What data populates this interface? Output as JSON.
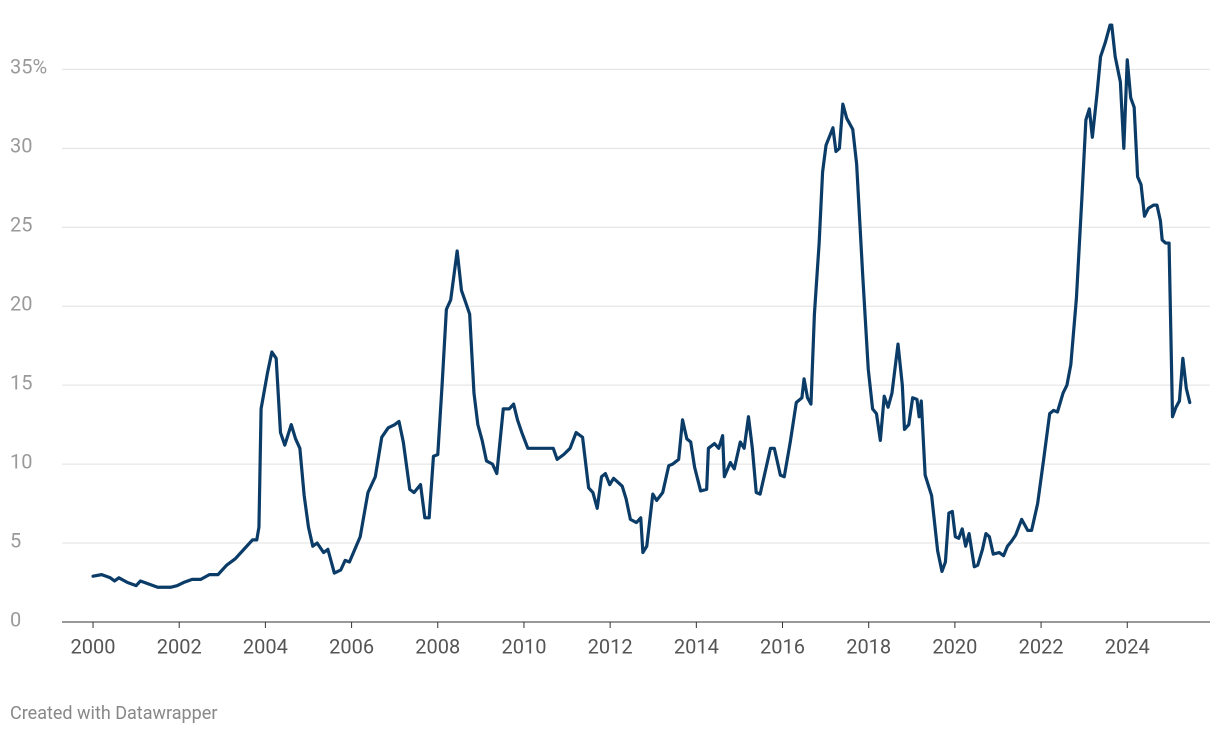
{
  "chart_data": {
    "type": "line",
    "footer": "Created with Datawrapper",
    "xlim": [
      1999.28,
      2025.92
    ],
    "ylim": [
      0,
      38
    ],
    "xticks": [
      2000,
      2002,
      2004,
      2006,
      2008,
      2010,
      2012,
      2014,
      2016,
      2018,
      2020,
      2022,
      2024
    ],
    "yticks": [
      0,
      5,
      10,
      15,
      20,
      25,
      30,
      {
        "value": 35,
        "label": "35%"
      }
    ],
    "grid": true,
    "series": [
      {
        "color": "#0b3c68",
        "x": [
          2000,
          2000.2,
          2000.4,
          2000.5,
          2000.6,
          2000.8,
          2001,
          2001.1,
          2001.3,
          2001.5,
          2001.8,
          2001.95,
          2002.1,
          2002.3,
          2002.5,
          2002.7,
          2002.9,
          2003.1,
          2003.3,
          2003.5,
          2003.7,
          2003.8,
          2003.85,
          2003.9,
          2004.05,
          2004.15,
          2004.25,
          2004.35,
          2004.45,
          2004.6,
          2004.7,
          2004.8,
          2004.9,
          2005.0,
          2005.1,
          2005.2,
          2005.35,
          2005.45,
          2005.6,
          2005.75,
          2005.85,
          2005.95,
          2006.2,
          2006.38,
          2006.55,
          2006.7,
          2006.85,
          2007.0,
          2007.1,
          2007.2,
          2007.35,
          2007.45,
          2007.6,
          2007.7,
          2007.8,
          2007.9,
          2008.0,
          2008.1,
          2008.2,
          2008.3,
          2008.45,
          2008.55,
          2008.64,
          2008.74,
          2008.84,
          2008.93,
          2009.03,
          2009.13,
          2009.27,
          2009.37,
          2009.52,
          2009.66,
          2009.76,
          2009.85,
          2009.95,
          2010.09,
          2010.44,
          2010.68,
          2010.77,
          2010.92,
          2011.07,
          2011.21,
          2011.36,
          2011.5,
          2011.6,
          2011.7,
          2011.8,
          2011.89,
          2011.99,
          2012.08,
          2012.28,
          2012.37,
          2012.47,
          2012.61,
          2012.71,
          2012.76,
          2012.85,
          2012.99,
          2013.08,
          2013.22,
          2013.36,
          2013.45,
          2013.59,
          2013.68,
          2013.78,
          2013.87,
          2013.96,
          2014.1,
          2014.24,
          2014.28,
          2014.42,
          2014.52,
          2014.61,
          2014.65,
          2014.79,
          2014.88,
          2015.02,
          2015.11,
          2015.21,
          2015.3,
          2015.39,
          2015.48,
          2015.58,
          2015.72,
          2015.81,
          2015.95,
          2016.04,
          2016.18,
          2016.32,
          2016.45,
          2016.5,
          2016.58,
          2016.66,
          2016.74,
          2016.85,
          2016.93,
          2017.01,
          2017.17,
          2017.24,
          2017.32,
          2017.4,
          2017.49,
          2017.63,
          2017.72,
          2017.86,
          2017.99,
          2018.09,
          2018.18,
          2018.27,
          2018.36,
          2018.45,
          2018.54,
          2018.68,
          2018.78,
          2018.83,
          2018.93,
          2019.02,
          2019.12,
          2019.17,
          2019.22,
          2019.31,
          2019.46,
          2019.6,
          2019.7,
          2019.78,
          2019.86,
          2019.94,
          2020.01,
          2020.09,
          2020.17,
          2020.25,
          2020.33,
          2020.45,
          2020.53,
          2020.64,
          2020.72,
          2020.8,
          2020.89,
          2021.03,
          2021.13,
          2021.22,
          2021.31,
          2021.41,
          2021.55,
          2021.69,
          2021.78,
          2021.92,
          2022.06,
          2022.2,
          2022.29,
          2022.38,
          2022.51,
          2022.6,
          2022.69,
          2022.82,
          2022.95,
          2023.04,
          2023.12,
          2023.19,
          2023.3,
          2023.38,
          2023.49,
          2023.6,
          2023.64,
          2023.72,
          2023.84,
          2023.92,
          2024.0,
          2024.08,
          2024.16,
          2024.24,
          2024.32,
          2024.4,
          2024.49,
          2024.61,
          2024.69,
          2024.77,
          2024.81,
          2024.89,
          2024.97,
          2025.05,
          2025.13,
          2025.21,
          2025.29,
          2025.37,
          2025.45
        ],
        "values": [
          2.9,
          3.0,
          2.8,
          2.6,
          2.8,
          2.5,
          2.3,
          2.6,
          2.4,
          2.2,
          2.2,
          2.3,
          2.5,
          2.7,
          2.7,
          3.0,
          3.0,
          3.6,
          4.0,
          4.6,
          5.2,
          5.2,
          6.0,
          13.5,
          15.8,
          17.1,
          16.7,
          12.0,
          11.2,
          12.5,
          11.6,
          11.0,
          8.0,
          6.0,
          4.8,
          5.0,
          4.4,
          4.6,
          3.1,
          3.3,
          3.9,
          3.8,
          5.4,
          8.2,
          9.2,
          11.7,
          12.3,
          12.5,
          12.7,
          11.4,
          8.4,
          8.2,
          8.7,
          6.6,
          6.6,
          10.5,
          10.6,
          15.0,
          19.8,
          20.4,
          23.5,
          21.0,
          20.3,
          19.5,
          14.5,
          12.5,
          11.5,
          10.2,
          10.0,
          9.4,
          13.5,
          13.5,
          13.8,
          12.8,
          12.0,
          11.0,
          11.0,
          11.0,
          10.3,
          10.6,
          11.0,
          12.0,
          11.7,
          8.5,
          8.2,
          7.2,
          9.2,
          9.4,
          8.7,
          9.1,
          8.6,
          7.8,
          6.5,
          6.3,
          6.6,
          4.4,
          4.8,
          8.1,
          7.7,
          8.2,
          9.9,
          10.0,
          10.3,
          12.8,
          11.6,
          11.4,
          9.8,
          8.3,
          8.4,
          11.0,
          11.3,
          11.0,
          11.8,
          9.2,
          10.1,
          9.7,
          11.4,
          11.0,
          13.0,
          11.0,
          8.2,
          8.1,
          9.3,
          11.0,
          11.0,
          9.3,
          9.2,
          11.4,
          13.9,
          14.2,
          15.4,
          14.2,
          13.8,
          19.5,
          24.0,
          28.5,
          30.2,
          31.3,
          29.8,
          30.0,
          32.8,
          31.9,
          31.2,
          29.0,
          22.0,
          16.0,
          13.5,
          13.2,
          11.5,
          14.3,
          13.6,
          14.5,
          17.6,
          15.0,
          12.2,
          12.5,
          14.2,
          14.1,
          13.0,
          14.0,
          9.3,
          8.0,
          4.5,
          3.2,
          3.8,
          6.9,
          7.0,
          5.4,
          5.3,
          5.9,
          4.8,
          5.6,
          3.5,
          3.6,
          4.6,
          5.6,
          5.4,
          4.3,
          4.4,
          4.2,
          4.8,
          5.1,
          5.5,
          6.5,
          5.8,
          5.8,
          7.5,
          10.3,
          13.2,
          13.4,
          13.3,
          14.5,
          15.0,
          16.3,
          20.5,
          27.0,
          31.8,
          32.5,
          30.7,
          33.5,
          35.8,
          36.7,
          37.8,
          37.8,
          35.8,
          34.2,
          30.0,
          35.6,
          33.2,
          32.6,
          28.2,
          27.7,
          25.7,
          26.2,
          26.4,
          26.4,
          25.4,
          24.2,
          24.0,
          24.0,
          13.0,
          13.6,
          14.0,
          16.7,
          14.8,
          13.9
        ]
      }
    ]
  }
}
